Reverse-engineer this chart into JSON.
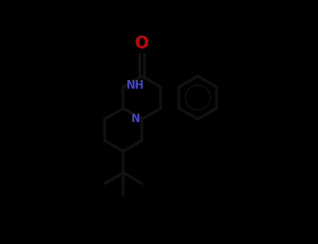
{
  "background_color": "#000000",
  "bond_color": "#111111",
  "NH_color": "#4444cc",
  "N_color": "#4444cc",
  "O_color": "#cc0000",
  "O_label": "O",
  "NH_label": "NH",
  "N_label": "N",
  "line_width": 3.0,
  "figsize": [
    4.55,
    3.5
  ],
  "dpi": 100,
  "scale": 0.088
}
